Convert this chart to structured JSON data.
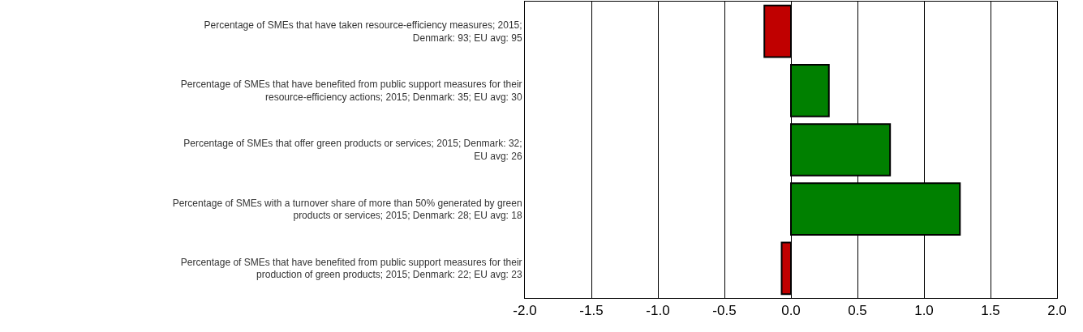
{
  "chart_data": {
    "type": "bar",
    "orientation": "horizontal",
    "categories": [
      "Percentage of SMEs that have taken resource-efficiency measures; 2015; Denmark: 93; EU avg: 95",
      "Percentage of SMEs that have benefited from public support measures for their resource-efficiency actions; 2015; Denmark: 35; EU avg: 30",
      "Percentage of SMEs that offer green products or services; 2015; Denmark: 32; EU avg: 26",
      "Percentage of SMEs with a turnover share of more than 50% generated by green products or services; 2015; Denmark: 28; EU avg: 18",
      "Percentage of SMEs that have benefited from public support measures for their production of green products; 2015; Denmark: 22; EU avg: 23"
    ],
    "values": [
      -0.2,
      0.285,
      0.745,
      1.27,
      -0.07
    ],
    "colors": [
      "#c00000",
      "#008000",
      "#008000",
      "#008000",
      "#c00000"
    ],
    "xlim": [
      -2.0,
      2.0
    ],
    "xticks": [
      {
        "value": -2.0,
        "label": "-2.0"
      },
      {
        "value": -1.5,
        "label": "-1.5"
      },
      {
        "value": -1.0,
        "label": "-1.0"
      },
      {
        "value": -0.5,
        "label": "-0.5"
      },
      {
        "value": 0.0,
        "label": "0.0"
      },
      {
        "value": 0.5,
        "label": "0.5"
      },
      {
        "value": 1.0,
        "label": "1.0"
      },
      {
        "value": 1.5,
        "label": "1.5"
      },
      {
        "value": 2.0,
        "label": "2.0"
      }
    ],
    "grid": "x",
    "legend": false
  }
}
